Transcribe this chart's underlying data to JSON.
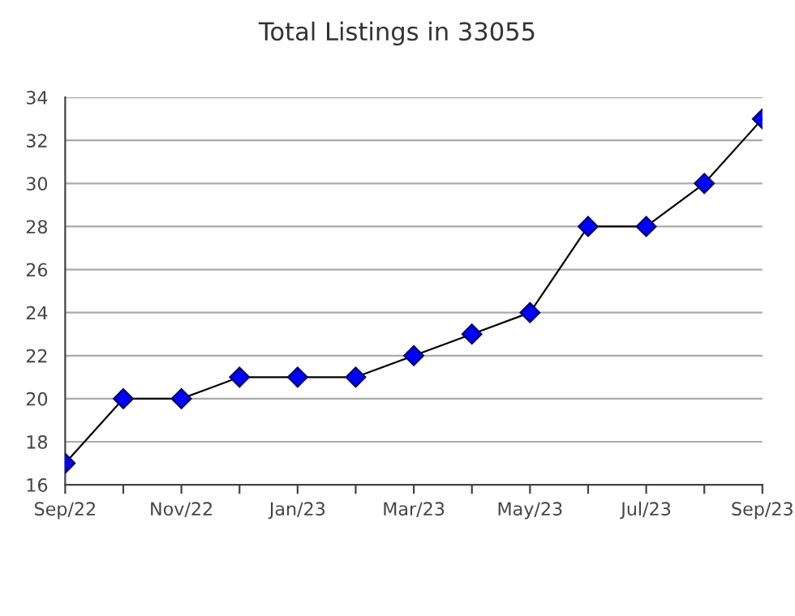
{
  "chart_data": {
    "type": "line",
    "title": "Total Listings in 33055",
    "categories": [
      "Sep/22",
      null,
      "Nov/22",
      null,
      "Jan/23",
      null,
      "Mar/23",
      null,
      "May/23",
      null,
      "Jul/23",
      null,
      "Sep/23"
    ],
    "series": [
      {
        "color": "#0000ff",
        "values": [
          17,
          20,
          20,
          21,
          21,
          21,
          22,
          23,
          24,
          28,
          28,
          30,
          33
        ]
      }
    ],
    "ylim": [
      16,
      34
    ],
    "yticks": [
      16,
      18,
      20,
      22,
      24,
      26,
      28,
      30,
      32,
      34
    ],
    "grid": "y",
    "marker": "diamond",
    "line_style": "solid",
    "legend": false
  }
}
